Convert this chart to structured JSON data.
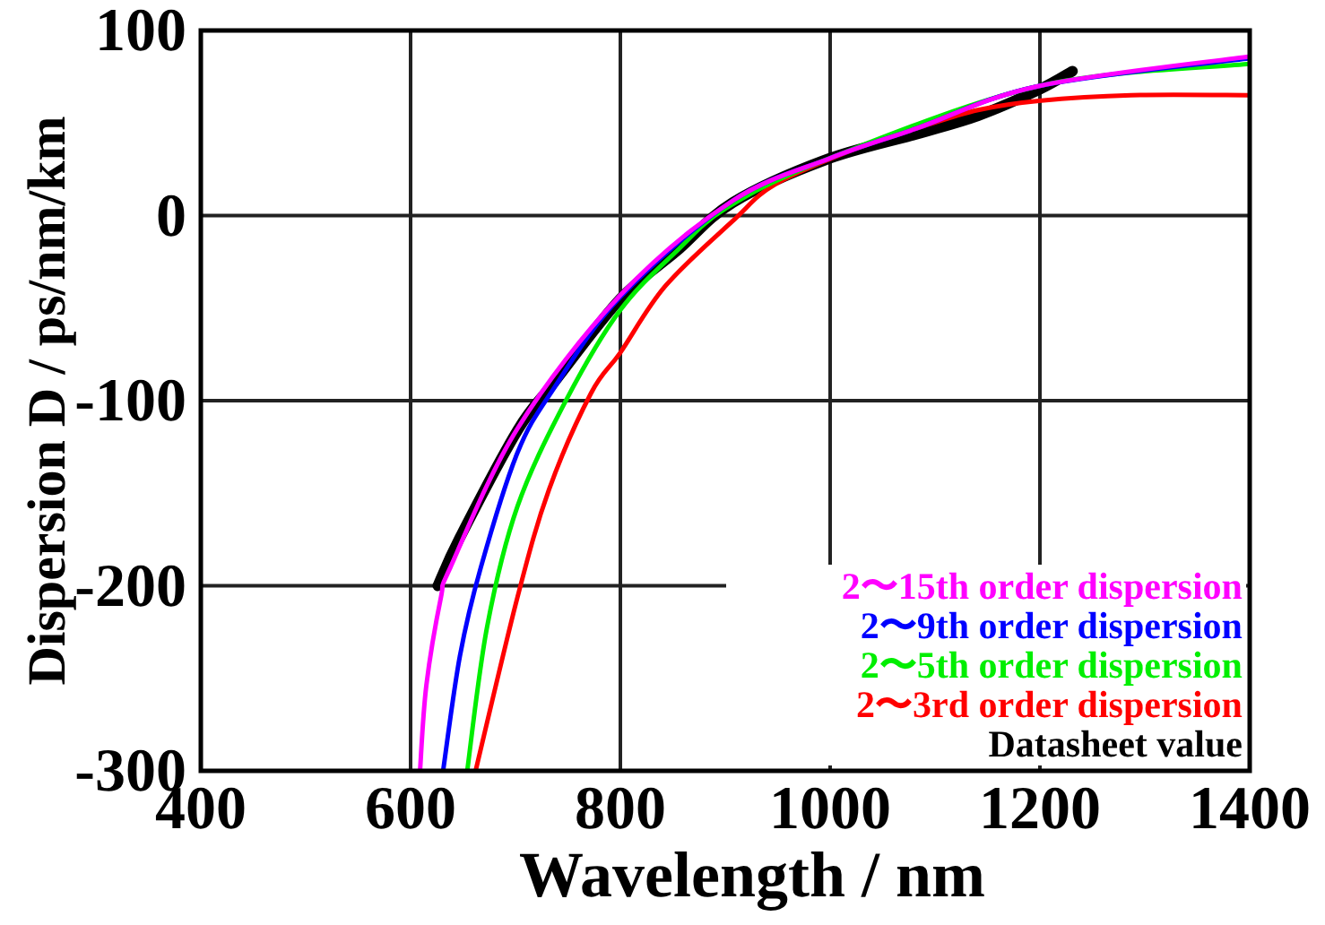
{
  "chart_data": {
    "type": "line",
    "xlabel": "Wavelength / nm",
    "ylabel": "Dispersion D / ps/nm/km",
    "xlim": [
      400,
      1400
    ],
    "ylim": [
      -300,
      100
    ],
    "xticks": [
      400,
      600,
      800,
      1000,
      1200,
      1400
    ],
    "yticks": [
      -300,
      -200,
      -100,
      0,
      100
    ],
    "grid": true,
    "legend": "bottom right",
    "line_style": "solid",
    "series": [
      {
        "name": "2〜15th order dispersion",
        "color": "#ff00ff",
        "x": [
          609,
          615,
          629,
          638,
          702,
          800,
          907,
          1000,
          1082,
          1199,
          1400
        ],
        "values": [
          -300,
          -254,
          -206,
          -190,
          -115,
          -43,
          8,
          31,
          47,
          70,
          86
        ]
      },
      {
        "name": "2〜9th order dispersion",
        "color": "#0000ff",
        "x": [
          631,
          647,
          667,
          702,
          737,
          800,
          907,
          1000,
          1082,
          1199,
          1400
        ],
        "values": [
          -300,
          -238,
          -190,
          -128,
          -93,
          -44,
          8,
          31,
          47,
          70,
          85
        ]
      },
      {
        "name": "2〜5th order dispersion",
        "color": "#00ee00",
        "x": [
          654,
          673,
          702,
          749,
          800,
          854,
          901,
          995,
          1199,
          1400
        ],
        "values": [
          -300,
          -222,
          -157,
          -99,
          -51,
          -19,
          4,
          30,
          70,
          82
        ]
      },
      {
        "name": "2〜3rd order dispersion",
        "color": "#ff0000",
        "x": [
          662,
          702,
          732,
          772,
          800,
          843,
          907,
          948,
          1024,
          1082,
          1141,
          1199,
          1287,
          1400
        ],
        "values": [
          -300,
          -206,
          -148,
          -96,
          -74,
          -38,
          -3,
          17,
          36,
          47,
          57,
          62,
          65,
          65
        ]
      },
      {
        "name": "Datasheet value",
        "color": "#000000",
        "x": [
          626,
          647,
          702,
          737,
          800,
          854,
          907,
          995,
          1082,
          1141,
          1199,
          1231
        ],
        "values": [
          -200,
          -174,
          -116,
          -90,
          -45,
          -19,
          7,
          30,
          44,
          54,
          68,
          78
        ]
      }
    ]
  }
}
